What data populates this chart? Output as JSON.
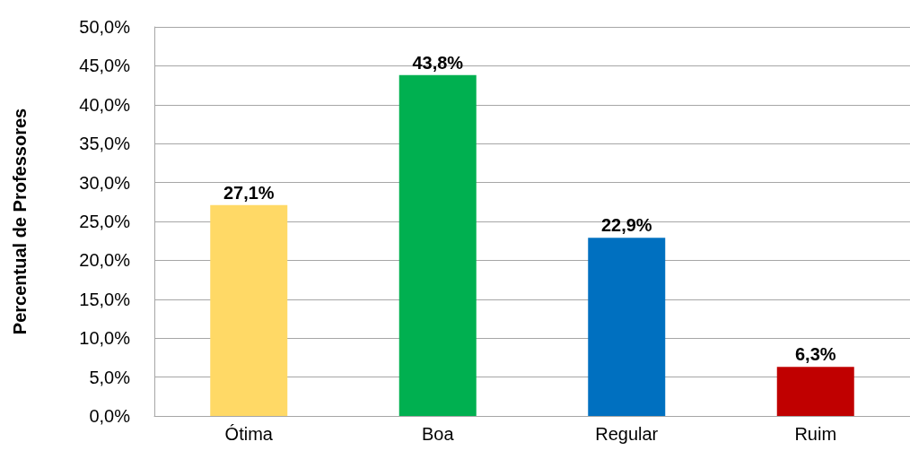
{
  "chart_data": {
    "type": "bar",
    "ylabel": "Percentual de Professores",
    "categories": [
      "Ótima",
      "Boa",
      "Regular",
      "Ruim"
    ],
    "values": [
      27.1,
      43.8,
      22.9,
      6.3
    ],
    "colors": [
      "#ffd966",
      "#00b050",
      "#0070c0",
      "#c00000"
    ],
    "value_labels": [
      "27,1%",
      "43,8%",
      "22,9%",
      "6,3%"
    ],
    "ylim": [
      0,
      50
    ],
    "yticks": [
      {
        "value": 0,
        "label": "0,0%"
      },
      {
        "value": 5,
        "label": "5,0%"
      },
      {
        "value": 10,
        "label": "10,0%"
      },
      {
        "value": 15,
        "label": "15,0%"
      },
      {
        "value": 20,
        "label": "20,0%"
      },
      {
        "value": 25,
        "label": "25,0%"
      },
      {
        "value": 30,
        "label": "30,0%"
      },
      {
        "value": 35,
        "label": "35,0%"
      },
      {
        "value": 40,
        "label": "40,0%"
      },
      {
        "value": 45,
        "label": "45,0%"
      },
      {
        "value": 50,
        "label": "50,0%"
      }
    ],
    "grid": "y"
  }
}
